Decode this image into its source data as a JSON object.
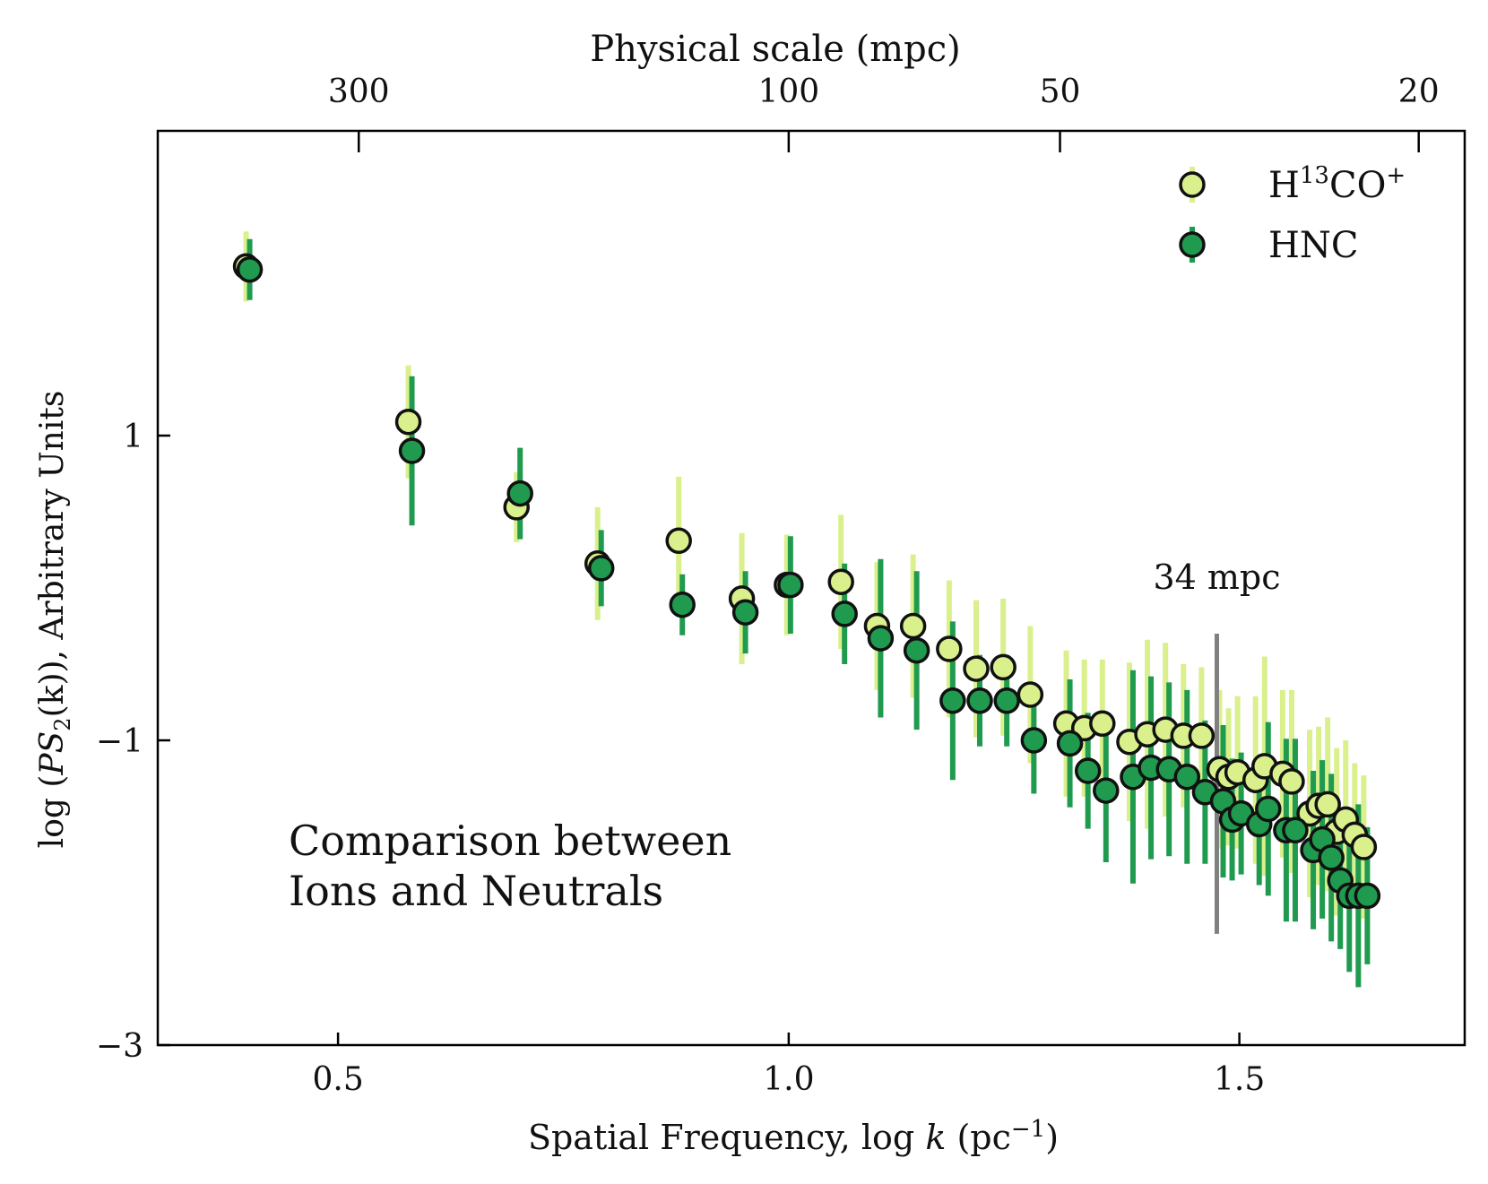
{
  "chart_data": {
    "type": "scatter",
    "xlabel_text": "Spatial Frequency, log ",
    "xlabel_var": "k",
    "xlabel_unit": " (pc",
    "xlabel_unit_sup": "−1",
    "xlabel_close": ")",
    "ylabel_pre": "log (",
    "ylabel_var": "PS",
    "ylabel_sub": "2",
    "ylabel_post": "(k)), Arbitrary Units",
    "top_axis_label": "Physical scale (mpc)",
    "xlim": [
      0.3,
      1.75
    ],
    "ylim": [
      -3,
      3
    ],
    "x_ticks": [
      {
        "value": 0.5,
        "label": "0.5"
      },
      {
        "value": 1.0,
        "label": "1.0"
      },
      {
        "value": 1.5,
        "label": "1.5"
      }
    ],
    "y_ticks": [
      {
        "value": 1,
        "label": "1"
      },
      {
        "value": -1,
        "label": "−1"
      },
      {
        "value": -3,
        "label": "−3"
      }
    ],
    "top_ticks": [
      {
        "value": 0.523,
        "label": "300"
      },
      {
        "value": 1.0,
        "label": "100"
      },
      {
        "value": 1.301,
        "label": "50"
      },
      {
        "value": 1.699,
        "label": "20"
      }
    ],
    "legend": {
      "placement": "top-right",
      "entries": [
        {
          "label": "H",
          "sup": "13",
          "label2": "CO",
          "sup2": "+"
        },
        {
          "label": "HNC",
          "sup": "",
          "label2": "",
          "sup2": ""
        }
      ]
    },
    "annotation": [
      "Comparison between",
      "Ions and Neutrals"
    ],
    "vline": {
      "x": 1.475,
      "y_range": [
        -2.27,
        -0.3
      ],
      "label": "34 mpc",
      "color": "#808080"
    },
    "series": [
      {
        "name": "H13CO+",
        "color": "#d9f08c",
        "err_color": "#d9f08c",
        "points": [
          [
            0.4,
            2.11,
            0.23
          ],
          [
            0.58,
            1.09,
            0.37
          ],
          [
            0.7,
            0.53,
            0.23
          ],
          [
            0.79,
            0.16,
            0.37
          ],
          [
            0.88,
            0.31,
            0.42
          ],
          [
            0.95,
            -0.07,
            0.43
          ],
          [
            1.0,
            0.02,
            0.33
          ],
          [
            1.06,
            0.04,
            0.44
          ],
          [
            1.1,
            -0.25,
            0.42
          ],
          [
            1.14,
            -0.25,
            0.47
          ],
          [
            1.18,
            -0.4,
            0.45
          ],
          [
            1.21,
            -0.53,
            0.45
          ],
          [
            1.24,
            -0.52,
            0.45
          ],
          [
            1.27,
            -0.7,
            0.45
          ],
          [
            1.31,
            -0.89,
            0.48
          ],
          [
            1.33,
            -0.92,
            0.45
          ],
          [
            1.35,
            -0.89,
            0.42
          ],
          [
            1.38,
            -1.01,
            0.52
          ],
          [
            1.4,
            -0.96,
            0.62
          ],
          [
            1.42,
            -0.93,
            0.57
          ],
          [
            1.44,
            -0.97,
            0.47
          ],
          [
            1.46,
            -0.97,
            0.45
          ],
          [
            1.48,
            -1.19,
            0.52
          ],
          [
            1.49,
            -1.24,
            0.45
          ],
          [
            1.5,
            -1.21,
            0.5
          ],
          [
            1.52,
            -1.26,
            0.55
          ],
          [
            1.53,
            -1.17,
            0.72
          ],
          [
            1.55,
            -1.22,
            0.55
          ],
          [
            1.56,
            -1.27,
            0.6
          ],
          [
            1.58,
            -1.48,
            0.55
          ],
          [
            1.59,
            -1.43,
            0.52
          ],
          [
            1.6,
            -1.42,
            0.57
          ],
          [
            1.61,
            -1.6,
            0.55
          ],
          [
            1.62,
            -1.52,
            0.52
          ],
          [
            1.63,
            -1.62,
            0.47
          ],
          [
            1.64,
            -1.7,
            0.47
          ]
        ]
      },
      {
        "name": "HNC",
        "color": "#1f9a4e",
        "err_color": "#1f9a4e",
        "points": [
          [
            0.4,
            2.09,
            0.2
          ],
          [
            0.58,
            0.9,
            0.49
          ],
          [
            0.7,
            0.62,
            0.3
          ],
          [
            0.79,
            0.13,
            0.25
          ],
          [
            0.88,
            -0.11,
            0.2
          ],
          [
            0.95,
            -0.16,
            0.27
          ],
          [
            1.0,
            0.02,
            0.32
          ],
          [
            1.06,
            -0.17,
            0.33
          ],
          [
            1.1,
            -0.33,
            0.52
          ],
          [
            1.14,
            -0.41,
            0.52
          ],
          [
            1.18,
            -0.74,
            0.52
          ],
          [
            1.21,
            -0.74,
            0.3
          ],
          [
            1.24,
            -0.74,
            0.3
          ],
          [
            1.27,
            -1.0,
            0.35
          ],
          [
            1.31,
            -1.02,
            0.42
          ],
          [
            1.33,
            -1.2,
            0.38
          ],
          [
            1.35,
            -1.33,
            0.47
          ],
          [
            1.38,
            -1.24,
            0.7
          ],
          [
            1.4,
            -1.18,
            0.6
          ],
          [
            1.42,
            -1.19,
            0.57
          ],
          [
            1.44,
            -1.24,
            0.57
          ],
          [
            1.46,
            -1.34,
            0.47
          ],
          [
            1.48,
            -1.4,
            0.5
          ],
          [
            1.49,
            -1.52,
            0.4
          ],
          [
            1.5,
            -1.48,
            0.4
          ],
          [
            1.52,
            -1.55,
            0.4
          ],
          [
            1.53,
            -1.45,
            0.57
          ],
          [
            1.55,
            -1.59,
            0.6
          ],
          [
            1.56,
            -1.59,
            0.6
          ],
          [
            1.58,
            -1.72,
            0.52
          ],
          [
            1.59,
            -1.65,
            0.52
          ],
          [
            1.6,
            -1.77,
            0.55
          ],
          [
            1.61,
            -1.92,
            0.45
          ],
          [
            1.62,
            -2.02,
            0.5
          ],
          [
            1.63,
            -2.02,
            0.6
          ],
          [
            1.64,
            -2.02,
            0.45
          ]
        ]
      }
    ]
  }
}
